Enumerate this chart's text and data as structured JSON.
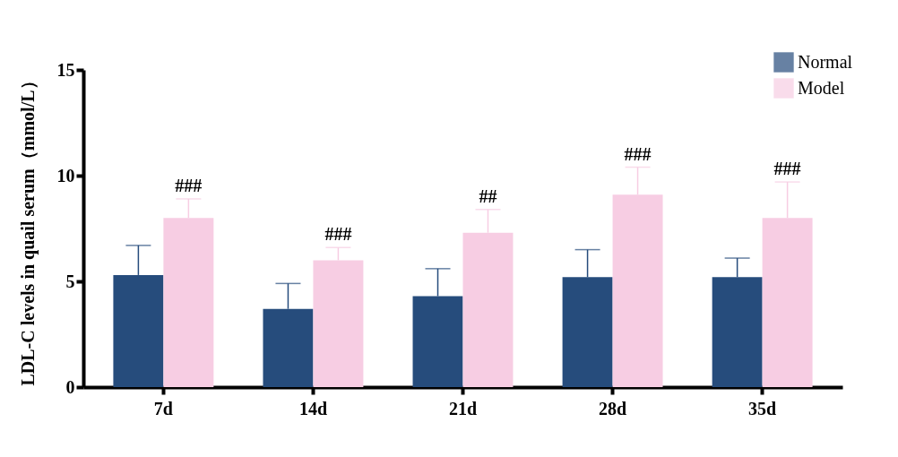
{
  "chart_data": {
    "type": "bar",
    "ylabel": "LDL-C levels in quail serum（mmol/L）",
    "categories": [
      "7d",
      "14d",
      "21d",
      "28d",
      "35d"
    ],
    "series": [
      {
        "name": "Normal",
        "color": "#264c7c",
        "values": [
          5.3,
          3.7,
          4.3,
          5.2,
          5.2
        ],
        "errors": [
          [
            5.3,
            6.7
          ],
          [
            3.7,
            4.9
          ],
          [
            4.3,
            5.6
          ],
          [
            5.2,
            6.5
          ],
          [
            5.2,
            6.1
          ]
        ]
      },
      {
        "name": "Model",
        "color": "#f7cde3",
        "values": [
          8.0,
          6.0,
          7.3,
          9.1,
          8.0
        ],
        "errors": [
          [
            8.0,
            8.9
          ],
          [
            6.0,
            6.6
          ],
          [
            7.3,
            8.4
          ],
          [
            9.1,
            10.4
          ],
          [
            8.0,
            9.7
          ]
        ]
      }
    ],
    "ylim": [
      0,
      15
    ],
    "yticks": [
      0,
      5,
      10,
      15
    ],
    "grid": false,
    "legend": "top right",
    "annotations": [
      "###",
      "###",
      "##",
      "###",
      "###"
    ]
  }
}
